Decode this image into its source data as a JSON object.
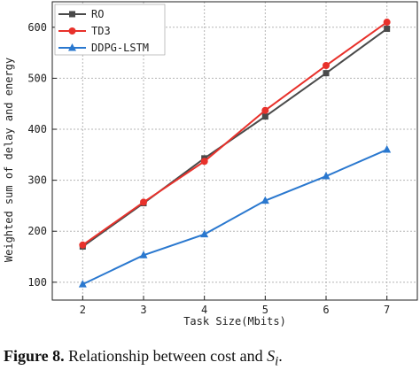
{
  "chart_data": {
    "type": "line",
    "title": "",
    "xlabel": "Task Size(Mbits)",
    "ylabel": "Weighted sum of delay and energy",
    "x": [
      2,
      3,
      4,
      5,
      6,
      7
    ],
    "xlim": [
      1.5,
      7.5
    ],
    "ylim": [
      65,
      650
    ],
    "xticks": [
      "2",
      "3",
      "4",
      "5",
      "6",
      "7"
    ],
    "yticks": [
      100,
      200,
      300,
      400,
      500,
      600
    ],
    "grid": "dotted",
    "legend_position": "top-left",
    "series": [
      {
        "name": "RO",
        "values": [
          170,
          255,
          343,
          425,
          510,
          597
        ],
        "color": "#4a4a4a",
        "marker": "square"
      },
      {
        "name": "TD3",
        "values": [
          173,
          257,
          337,
          437,
          525,
          610
        ],
        "color": "#e8312b",
        "marker": "circle"
      },
      {
        "name": "DDPG-LSTM",
        "values": [
          96,
          153,
          194,
          260,
          308,
          360
        ],
        "color": "#2a78cf",
        "marker": "triangle"
      }
    ]
  },
  "caption": {
    "label": "Figure 8.",
    "text": " Relationship between cost and ",
    "symbol": "S",
    "subscript": "i",
    "end": "."
  }
}
